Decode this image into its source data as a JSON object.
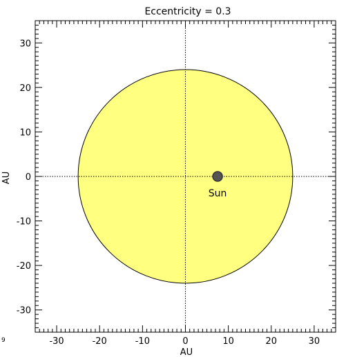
{
  "chart_data": {
    "type": "scatter",
    "title": "Eccentricity = 0.3",
    "xlabel": "AU",
    "ylabel": "AU",
    "xlim": [
      -35,
      35
    ],
    "ylim": [
      -35,
      35
    ],
    "x_major_ticks": [
      -30,
      -20,
      -10,
      0,
      10,
      20,
      30
    ],
    "y_major_ticks": [
      -30,
      -20,
      -10,
      0,
      10,
      20,
      30
    ],
    "x_tick_labels": [
      "-30",
      "-20",
      "-10",
      "0",
      "10",
      "20",
      "30"
    ],
    "y_tick_labels": [
      "-30",
      "-20",
      "-10",
      "0",
      "10",
      "20",
      "30"
    ],
    "minor_tick_step": 1,
    "orbit": {
      "center": [
        0,
        0
      ],
      "semi_major_axis": 25,
      "semi_minor_axis": 24,
      "fill_color": "#ffff80",
      "stroke_color": "#000000"
    },
    "sun": {
      "label": "Sun",
      "x": 7.5,
      "y": 0,
      "color": "#555555"
    },
    "crosshair": {
      "x": 0,
      "y": 0,
      "style": "dotted"
    },
    "corner_mark": "9"
  }
}
